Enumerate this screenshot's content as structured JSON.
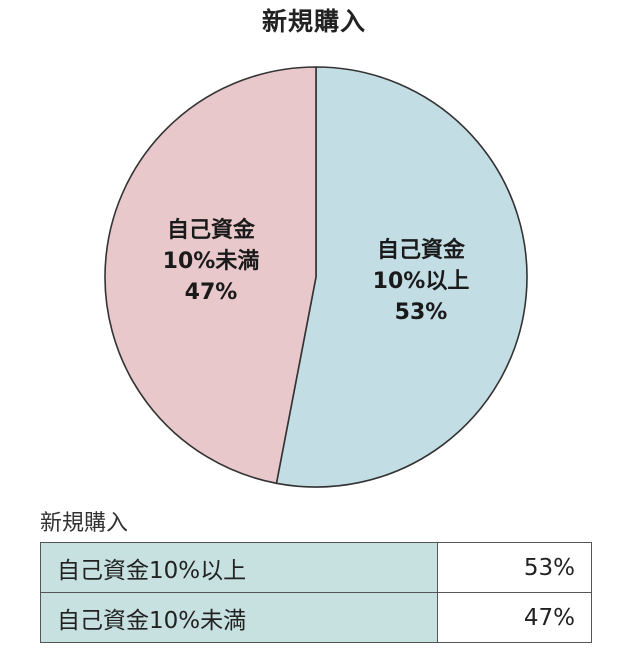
{
  "chart_data": {
    "type": "pie",
    "title": "新規購入",
    "slices": [
      {
        "label_line1": "自己資金",
        "label_line2": "10%以上",
        "value": 53,
        "value_text": "53%",
        "color": "#c3dde4"
      },
      {
        "label_line1": "自己資金",
        "label_line2": "10%未満",
        "value": 47,
        "value_text": "47%",
        "color": "#e8c8ca"
      }
    ],
    "start_angle": "12 o'clock",
    "direction": "clockwise"
  },
  "table": {
    "caption": "新規購入",
    "rows": [
      {
        "label": "自己資金10%以上",
        "value": "53%"
      },
      {
        "label": "自己資金10%未満",
        "value": "47%"
      }
    ]
  }
}
